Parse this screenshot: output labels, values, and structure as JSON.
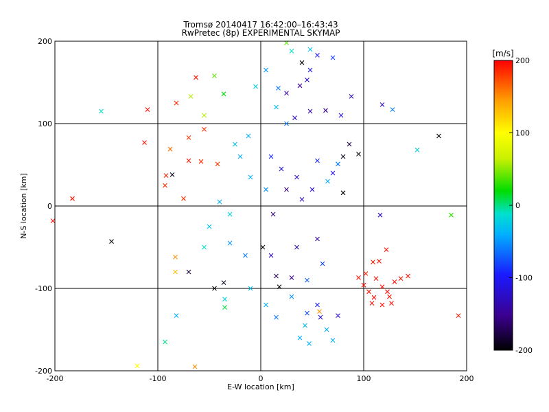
{
  "chart_data": {
    "type": "scatter",
    "title": "Tromsø 20140417 16:42:00–16:43:43",
    "subtitle": "RwPretec (8p) EXPERIMENTAL SKYMAP",
    "xlabel": "E-W location [km]",
    "ylabel": "N-S location [km]",
    "xlim": [
      -200,
      200
    ],
    "ylim": [
      -200,
      200
    ],
    "xticks": [
      "-200",
      "-100",
      "0",
      "100",
      "200"
    ],
    "yticks": [
      "-200",
      "-100",
      "0",
      "100",
      "200"
    ],
    "grid": true,
    "colorbar": {
      "label": "[m/s]",
      "range": [
        -200,
        200
      ],
      "ticks": [
        "200",
        "100",
        "0",
        "-100",
        "-200"
      ],
      "colormap": [
        "#000000",
        "#3b0090",
        "#1a1aff",
        "#00b0ff",
        "#00e0d0",
        "#00dd00",
        "#c8f000",
        "#ffff00",
        "#ffa000",
        "#ff0000"
      ]
    },
    "markers": {
      "cross": "x",
      "dot": "small point"
    },
    "points": [
      {
        "x": -155,
        "y": 115,
        "v": -10,
        "m": "x"
      },
      {
        "x": -110,
        "y": 117,
        "v": 195,
        "m": "x"
      },
      {
        "x": -82,
        "y": 125,
        "v": 190,
        "m": "x"
      },
      {
        "x": -63,
        "y": 156,
        "v": 190,
        "m": "x"
      },
      {
        "x": -55,
        "y": 93,
        "v": 185,
        "m": "x"
      },
      {
        "x": -68,
        "y": 133,
        "v": 60,
        "m": "x"
      },
      {
        "x": -36,
        "y": 136,
        "v": 20,
        "m": "x"
      },
      {
        "x": -55,
        "y": 110,
        "v": 60,
        "m": "x"
      },
      {
        "x": -113,
        "y": 77,
        "v": 195,
        "m": "x"
      },
      {
        "x": -92,
        "y": 37,
        "v": 190,
        "m": "x"
      },
      {
        "x": -75,
        "y": 9,
        "v": 180,
        "m": "x"
      },
      {
        "x": -93,
        "y": 25,
        "v": 185,
        "m": "x"
      },
      {
        "x": -88,
        "y": 69,
        "v": 160,
        "m": "x"
      },
      {
        "x": -86,
        "y": 38,
        "v": -190,
        "m": "x"
      },
      {
        "x": -70,
        "y": 83,
        "v": 180,
        "m": "x"
      },
      {
        "x": -58,
        "y": 54,
        "v": 185,
        "m": "x"
      },
      {
        "x": -42,
        "y": 51,
        "v": 180,
        "m": "x"
      },
      {
        "x": -70,
        "y": 55,
        "v": 190,
        "m": "x"
      },
      {
        "x": -183,
        "y": 9,
        "v": 195,
        "m": "x"
      },
      {
        "x": -202,
        "y": -18,
        "v": 195,
        "m": "x"
      },
      {
        "x": -145,
        "y": -43,
        "v": -200,
        "m": "x"
      },
      {
        "x": -83,
        "y": -62,
        "v": 150,
        "m": "x"
      },
      {
        "x": -83,
        "y": -80,
        "v": 130,
        "m": "x"
      },
      {
        "x": -45,
        "y": -100,
        "v": -200,
        "m": "x"
      },
      {
        "x": -70,
        "y": -80,
        "v": -180,
        "m": "x"
      },
      {
        "x": -36,
        "y": -93,
        "v": -190,
        "m": "x"
      },
      {
        "x": -35,
        "y": -113,
        "v": -20,
        "m": "x"
      },
      {
        "x": -35,
        "y": -123,
        "v": 10,
        "m": "x"
      },
      {
        "x": -82,
        "y": -133,
        "v": -40,
        "m": "x"
      },
      {
        "x": -93,
        "y": -165,
        "v": 0,
        "m": "x"
      },
      {
        "x": -64,
        "y": -195,
        "v": 150,
        "m": "x"
      },
      {
        "x": -120,
        "y": -194,
        "v": 100,
        "m": "x"
      },
      {
        "x": 17,
        "y": 143,
        "v": -60,
        "m": "x"
      },
      {
        "x": 25,
        "y": 137,
        "v": -140,
        "m": "x"
      },
      {
        "x": 38,
        "y": 146,
        "v": -150,
        "m": "x"
      },
      {
        "x": 45,
        "y": 153,
        "v": -120,
        "m": "x"
      },
      {
        "x": 48,
        "y": 165,
        "v": -100,
        "m": "x"
      },
      {
        "x": 40,
        "y": 174,
        "v": -200,
        "m": "x"
      },
      {
        "x": 55,
        "y": 183,
        "v": -100,
        "m": "x"
      },
      {
        "x": 70,
        "y": 180,
        "v": -80,
        "m": "x"
      },
      {
        "x": 33,
        "y": 107,
        "v": -130,
        "m": "x"
      },
      {
        "x": 48,
        "y": 115,
        "v": -140,
        "m": "x"
      },
      {
        "x": 63,
        "y": 116,
        "v": -150,
        "m": "x"
      },
      {
        "x": 78,
        "y": 110,
        "v": -110,
        "m": "x"
      },
      {
        "x": 88,
        "y": 133,
        "v": -130,
        "m": "x"
      },
      {
        "x": 118,
        "y": 123,
        "v": -120,
        "m": "x"
      },
      {
        "x": 128,
        "y": 117,
        "v": -60,
        "m": "x"
      },
      {
        "x": 86,
        "y": 75,
        "v": -180,
        "m": "x"
      },
      {
        "x": 173,
        "y": 85,
        "v": -200,
        "m": "x"
      },
      {
        "x": 152,
        "y": 68,
        "v": -20,
        "m": "x"
      },
      {
        "x": 80,
        "y": 60,
        "v": -190,
        "m": "x"
      },
      {
        "x": 75,
        "y": 51,
        "v": -60,
        "m": "x"
      },
      {
        "x": 95,
        "y": 63,
        "v": -200,
        "m": "x"
      },
      {
        "x": 80,
        "y": 16,
        "v": -200,
        "m": "x"
      },
      {
        "x": 65,
        "y": 30,
        "v": -40,
        "m": "x"
      },
      {
        "x": 116,
        "y": -11,
        "v": -120,
        "m": "x"
      },
      {
        "x": 185,
        "y": -11,
        "v": 30,
        "m": "x"
      },
      {
        "x": 122,
        "y": -53,
        "v": 195,
        "m": "x"
      },
      {
        "x": 109,
        "y": -68,
        "v": 190,
        "m": "x"
      },
      {
        "x": 95,
        "y": -87,
        "v": 195,
        "m": "x"
      },
      {
        "x": 100,
        "y": -96,
        "v": 195,
        "m": "x"
      },
      {
        "x": 105,
        "y": -104,
        "v": 195,
        "m": "x"
      },
      {
        "x": 110,
        "y": -111,
        "v": 195,
        "m": "x"
      },
      {
        "x": 118,
        "y": -98,
        "v": 195,
        "m": "x"
      },
      {
        "x": 123,
        "y": -104,
        "v": 195,
        "m": "x"
      },
      {
        "x": 125,
        "y": -110,
        "v": 195,
        "m": "x"
      },
      {
        "x": 127,
        "y": -118,
        "v": 195,
        "m": "x"
      },
      {
        "x": 118,
        "y": -120,
        "v": 195,
        "m": "x"
      },
      {
        "x": 130,
        "y": -92,
        "v": 195,
        "m": "x"
      },
      {
        "x": 136,
        "y": -88,
        "v": 195,
        "m": "x"
      },
      {
        "x": 143,
        "y": -85,
        "v": 195,
        "m": "x"
      },
      {
        "x": 115,
        "y": -67,
        "v": 195,
        "m": "x"
      },
      {
        "x": 102,
        "y": -82,
        "v": 190,
        "m": "x"
      },
      {
        "x": 192,
        "y": -133,
        "v": 190,
        "m": "x"
      },
      {
        "x": 112,
        "y": -88,
        "v": 195,
        "m": "x"
      },
      {
        "x": 108,
        "y": -118,
        "v": 195,
        "m": "x"
      },
      {
        "x": 30,
        "y": -87,
        "v": -150,
        "m": "x"
      },
      {
        "x": 18,
        "y": -98,
        "v": -200,
        "m": "x"
      },
      {
        "x": 55,
        "y": -120,
        "v": -100,
        "m": "x"
      },
      {
        "x": 58,
        "y": -135,
        "v": -120,
        "m": "x"
      },
      {
        "x": 75,
        "y": -133,
        "v": -120,
        "m": "x"
      },
      {
        "x": 64,
        "y": -150,
        "v": -40,
        "m": "x"
      },
      {
        "x": 43,
        "y": -145,
        "v": -30,
        "m": "x"
      },
      {
        "x": 38,
        "y": -160,
        "v": -40,
        "m": "x"
      },
      {
        "x": 47,
        "y": -167,
        "v": -40,
        "m": "x"
      },
      {
        "x": 70,
        "y": -163,
        "v": -40,
        "m": "x"
      },
      {
        "x": 57,
        "y": -128,
        "v": 150,
        "m": "x"
      },
      {
        "x": 45,
        "y": -130,
        "v": -80,
        "m": "x"
      },
      {
        "x": 15,
        "y": -85,
        "v": -170,
        "m": "x"
      },
      {
        "x": 2,
        "y": -50,
        "v": -200,
        "m": "x"
      },
      {
        "x": 12,
        "y": -10,
        "v": -160,
        "m": "x"
      },
      {
        "x": 25,
        "y": 20,
        "v": -150,
        "m": "x"
      },
      {
        "x": 5,
        "y": 20,
        "v": -50,
        "m": "x"
      },
      {
        "x": -10,
        "y": 35,
        "v": -40,
        "m": "x"
      },
      {
        "x": -20,
        "y": 60,
        "v": -40,
        "m": "x"
      },
      {
        "x": -25,
        "y": 75,
        "v": -30,
        "m": "x"
      },
      {
        "x": -12,
        "y": 85,
        "v": -40,
        "m": "x"
      },
      {
        "x": 10,
        "y": 60,
        "v": -90,
        "m": "x"
      },
      {
        "x": 20,
        "y": 45,
        "v": -110,
        "m": "x"
      },
      {
        "x": 35,
        "y": 35,
        "v": -120,
        "m": "x"
      },
      {
        "x": 50,
        "y": 20,
        "v": -130,
        "m": "x"
      },
      {
        "x": 40,
        "y": 8,
        "v": -120,
        "m": "x"
      },
      {
        "x": -40,
        "y": 5,
        "v": -40,
        "m": "x"
      },
      {
        "x": -30,
        "y": -10,
        "v": -20,
        "m": "x"
      },
      {
        "x": -50,
        "y": -25,
        "v": -30,
        "m": "x"
      },
      {
        "x": -30,
        "y": -45,
        "v": -50,
        "m": "x"
      },
      {
        "x": -15,
        "y": -60,
        "v": -60,
        "m": "x"
      },
      {
        "x": 10,
        "y": -60,
        "v": -140,
        "m": "x"
      },
      {
        "x": 35,
        "y": -50,
        "v": -130,
        "m": "x"
      },
      {
        "x": 55,
        "y": -40,
        "v": -140,
        "m": "x"
      },
      {
        "x": 60,
        "y": -70,
        "v": -80,
        "m": "x"
      },
      {
        "x": 45,
        "y": -90,
        "v": -70,
        "m": "x"
      },
      {
        "x": 30,
        "y": -110,
        "v": -50,
        "m": "x"
      },
      {
        "x": 5,
        "y": -120,
        "v": -40,
        "m": "x"
      },
      {
        "x": 15,
        "y": -135,
        "v": -60,
        "m": "x"
      },
      {
        "x": -10,
        "y": -100,
        "v": -30,
        "m": "x"
      },
      {
        "x": -55,
        "y": -50,
        "v": -10,
        "m": "x"
      },
      {
        "x": 15,
        "y": 120,
        "v": -30,
        "m": "x"
      },
      {
        "x": -5,
        "y": 145,
        "v": -20,
        "m": "x"
      },
      {
        "x": 5,
        "y": 165,
        "v": -50,
        "m": "x"
      },
      {
        "x": -45,
        "y": 158,
        "v": 40,
        "m": "x"
      },
      {
        "x": 25,
        "y": 100,
        "v": -60,
        "m": "x"
      },
      {
        "x": 55,
        "y": 55,
        "v": -90,
        "m": "x"
      },
      {
        "x": 70,
        "y": 40,
        "v": -110,
        "m": "x"
      },
      {
        "x": 48,
        "y": 190,
        "v": -30,
        "m": "x"
      },
      {
        "x": 30,
        "y": 188,
        "v": -10,
        "m": "x"
      },
      {
        "x": 25,
        "y": 198,
        "v": 40,
        "m": "x"
      }
    ]
  }
}
